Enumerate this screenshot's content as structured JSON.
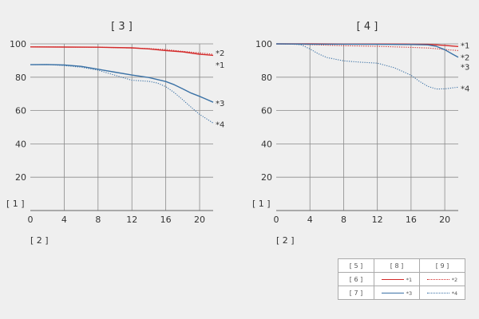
{
  "chart_data": [
    {
      "type": "line",
      "title": "[ 3 ]",
      "ylabel": "[ 1 ]",
      "xlabel": "[ 2 ]",
      "xlim": [
        0,
        21.6
      ],
      "ylim": [
        0,
        100
      ],
      "x_ticks": [
        "0",
        "4",
        "8",
        "12",
        "16",
        "20"
      ],
      "y_ticks": [
        "20",
        "40",
        "60",
        "80",
        "100"
      ],
      "grid": true,
      "series": [
        {
          "name": "*1",
          "color": "#d42a2a",
          "style": "solid",
          "x": [
            0,
            4,
            8,
            12,
            14,
            16,
            18,
            20,
            21.6
          ],
          "y": [
            98.2,
            98.1,
            98,
            97.6,
            97,
            96,
            95.2,
            93.8,
            93.1
          ]
        },
        {
          "name": "*2",
          "color": "#d42a2a",
          "style": "dotted",
          "x": [
            0,
            4,
            8,
            12,
            14,
            16,
            18,
            20,
            21.6
          ],
          "y": [
            98.2,
            98.1,
            98,
            97.5,
            97.2,
            96.6,
            95.5,
            94.6,
            93.8
          ]
        },
        {
          "name": "*3",
          "color": "#3b72a6",
          "style": "solid",
          "x": [
            0,
            2,
            4,
            6,
            8,
            10,
            12,
            14,
            16,
            17,
            18,
            19,
            20,
            21.6
          ],
          "y": [
            87.5,
            87.6,
            87.3,
            86.5,
            84.8,
            83,
            81.3,
            79.8,
            77.4,
            75.5,
            73,
            70.5,
            68.5,
            65
          ]
        },
        {
          "name": "*4",
          "color": "#3b72a6",
          "style": "dotted",
          "x": [
            0,
            2,
            4,
            6,
            8,
            10,
            12,
            14,
            15,
            16,
            17,
            18,
            19,
            20,
            21.6
          ],
          "y": [
            87.5,
            87.6,
            87,
            86,
            84.2,
            81.2,
            78.2,
            77.5,
            76.5,
            74.3,
            70.8,
            66.5,
            62,
            57.7,
            52.5
          ]
        }
      ]
    },
    {
      "type": "line",
      "title": "[ 4 ]",
      "ylabel": "[ 1 ]",
      "xlabel": "[ 2 ]",
      "xlim": [
        0,
        21.6
      ],
      "ylim": [
        0,
        100
      ],
      "x_ticks": [
        "0",
        "4",
        "8",
        "12",
        "16",
        "20"
      ],
      "y_ticks": [
        "20",
        "40",
        "60",
        "80",
        "100"
      ],
      "grid": true,
      "series": [
        {
          "name": "*1",
          "color": "#d42a2a",
          "style": "solid",
          "x": [
            0,
            4,
            8,
            12,
            16,
            18,
            20,
            21.6
          ],
          "y": [
            100,
            100,
            99.9,
            99.9,
            99.8,
            99.7,
            99.1,
            98.4
          ]
        },
        {
          "name": "*2",
          "color": "#d42a2a",
          "style": "dotted",
          "x": [
            0,
            4,
            8,
            12,
            16,
            18,
            20,
            21.6
          ],
          "y": [
            100,
            99.5,
            98.9,
            98.5,
            97.9,
            97.5,
            96.6,
            96
          ]
        },
        {
          "name": "*3",
          "color": "#3b72a6",
          "style": "solid",
          "x": [
            0,
            4,
            8,
            12,
            16,
            18,
            19,
            20,
            21,
            21.6
          ],
          "y": [
            100,
            99.8,
            99.8,
            99.7,
            99.6,
            99.4,
            98.5,
            96.5,
            93.6,
            92
          ]
        },
        {
          "name": "*4",
          "color": "#3b72a6",
          "style": "dotted",
          "x": [
            0,
            2,
            3,
            4,
            5,
            6,
            8,
            10,
            12,
            14,
            16,
            17,
            18,
            19,
            20,
            21.6
          ],
          "y": [
            100,
            100,
            99.3,
            97,
            94,
            91.8,
            89.8,
            89,
            88.4,
            85.7,
            81.2,
            77.5,
            74.5,
            72.9,
            73,
            74
          ]
        }
      ]
    }
  ],
  "legend": {
    "header": [
      "[ 5 ]",
      "[ 8 ]",
      "[ 9 ]"
    ],
    "rows": [
      {
        "label": "[ 6 ]",
        "solid": "*1",
        "dotted": "*2"
      },
      {
        "label": "[ 7 ]",
        "solid": "*3",
        "dotted": "*4"
      }
    ]
  }
}
